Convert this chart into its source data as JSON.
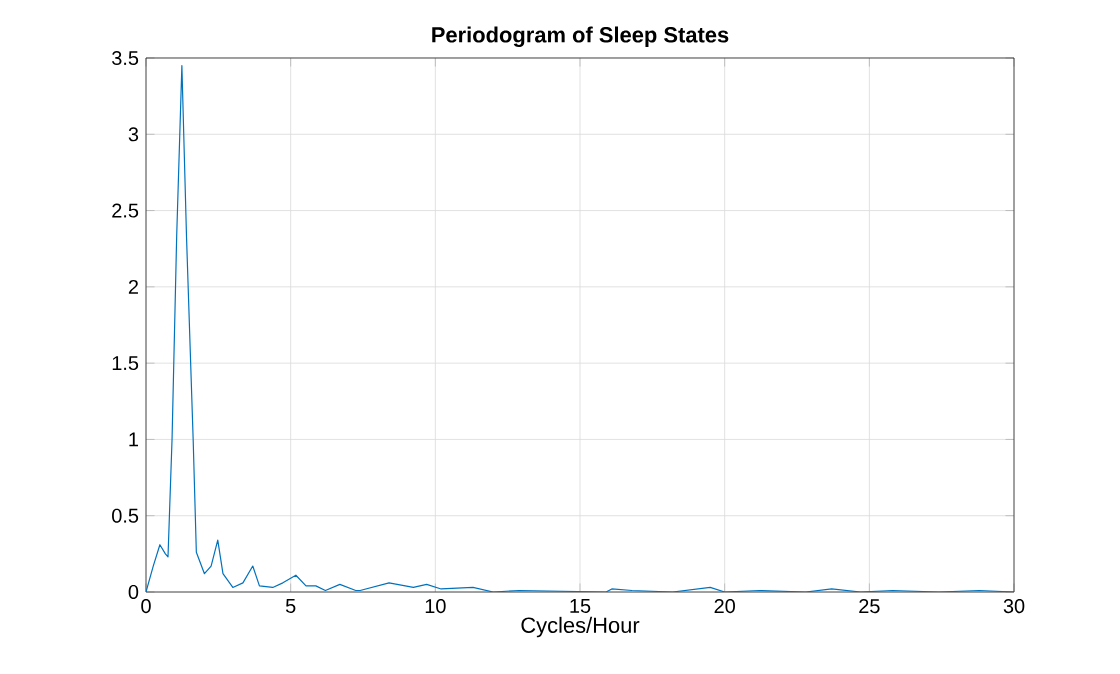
{
  "chart_data": {
    "type": "line",
    "title": "Periodogram of Sleep States",
    "xlabel": "Cycles/Hour",
    "x": [
      0,
      0.25,
      0.48,
      0.67,
      0.76,
      0.9,
      1.06,
      1.24,
      1.4,
      1.63,
      1.74,
      2.02,
      2.25,
      2.48,
      2.66,
      3.0,
      3.35,
      3.69,
      3.92,
      4.38,
      4.73,
      5.18,
      5.53,
      5.87,
      6.2,
      6.7,
      7.25,
      7.4,
      8.4,
      9.24,
      9.7,
      10.2,
      11.3,
      12.0,
      12.9,
      15.9,
      16.1,
      16.8,
      18.2,
      19.5,
      20.0,
      21.2,
      22.8,
      23.7,
      24.7,
      25.8,
      27.4,
      28.8,
      30
    ],
    "series": [
      {
        "color": "#0072bd",
        "values": [
          0,
          0.17,
          0.31,
          0.25,
          0.23,
          1.0,
          2.33,
          3.45,
          2.33,
          1.0,
          0.26,
          0.12,
          0.17,
          0.34,
          0.12,
          0.03,
          0.06,
          0.17,
          0.04,
          0.03,
          0.06,
          0.11,
          0.04,
          0.04,
          0.01,
          0.05,
          0.01,
          0.01,
          0.06,
          0.03,
          0.05,
          0.02,
          0.03,
          0,
          0.01,
          0,
          0.02,
          0.01,
          0,
          0.03,
          0,
          0.01,
          0,
          0.02,
          0,
          0.01,
          0,
          0.01,
          0
        ]
      }
    ],
    "xlim": [
      0,
      30
    ],
    "ylim": [
      0,
      3.5
    ],
    "xticks": [
      0,
      5,
      10,
      15,
      20,
      25,
      30
    ],
    "yticks": [
      0,
      0.5,
      1,
      1.5,
      2,
      2.5,
      3,
      3.5
    ],
    "grid": true,
    "marker": "none",
    "line_style": "solid"
  }
}
